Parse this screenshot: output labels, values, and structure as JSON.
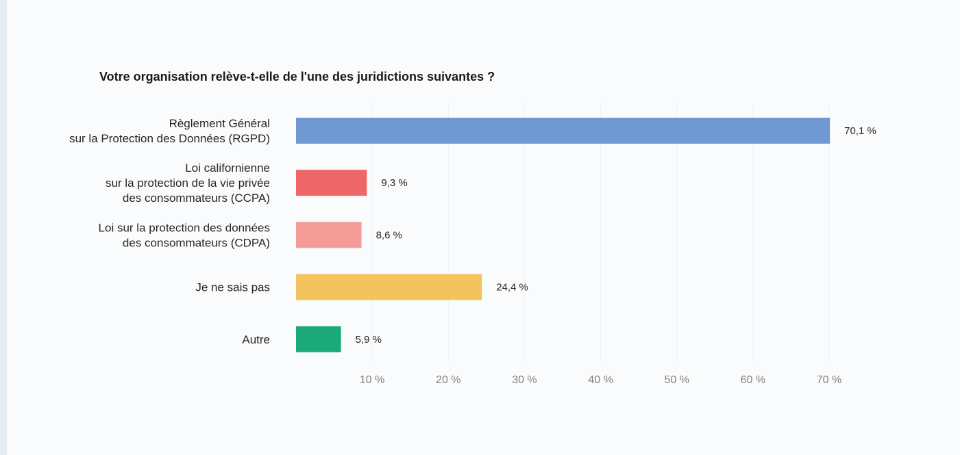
{
  "chart_data": {
    "type": "bar",
    "orientation": "horizontal",
    "title": "Votre organisation relève-t-elle de l'une des juridictions suivantes ?",
    "categories": [
      [
        "Règlement Général",
        "sur la Protection des Données (RGPD)"
      ],
      [
        "Loi californienne",
        "sur la protection de la vie privée",
        "des consommateurs (CCPA)"
      ],
      [
        "Loi sur la protection des données",
        "des consommateurs (CDPA)"
      ],
      [
        "Je ne sais pas"
      ],
      [
        "Autre"
      ]
    ],
    "values": [
      70.1,
      9.3,
      8.6,
      24.4,
      5.9
    ],
    "value_labels": [
      "70,1 %",
      "9,3 %",
      "8,6 %",
      "24,4 %",
      "5,9 %"
    ],
    "colors": [
      "#7099d1",
      "#ee6668",
      "#f49c98",
      "#f3c45e",
      "#1aaa79"
    ],
    "xlim": [
      0,
      70
    ],
    "ticks": [
      10,
      20,
      30,
      40,
      50,
      60,
      70
    ],
    "tick_labels": [
      "10 %",
      "20 %",
      "30 %",
      "40 %",
      "50 %",
      "60 %",
      "70 %"
    ],
    "xlabel": "",
    "ylabel": "",
    "grid": true,
    "legend": "none"
  }
}
